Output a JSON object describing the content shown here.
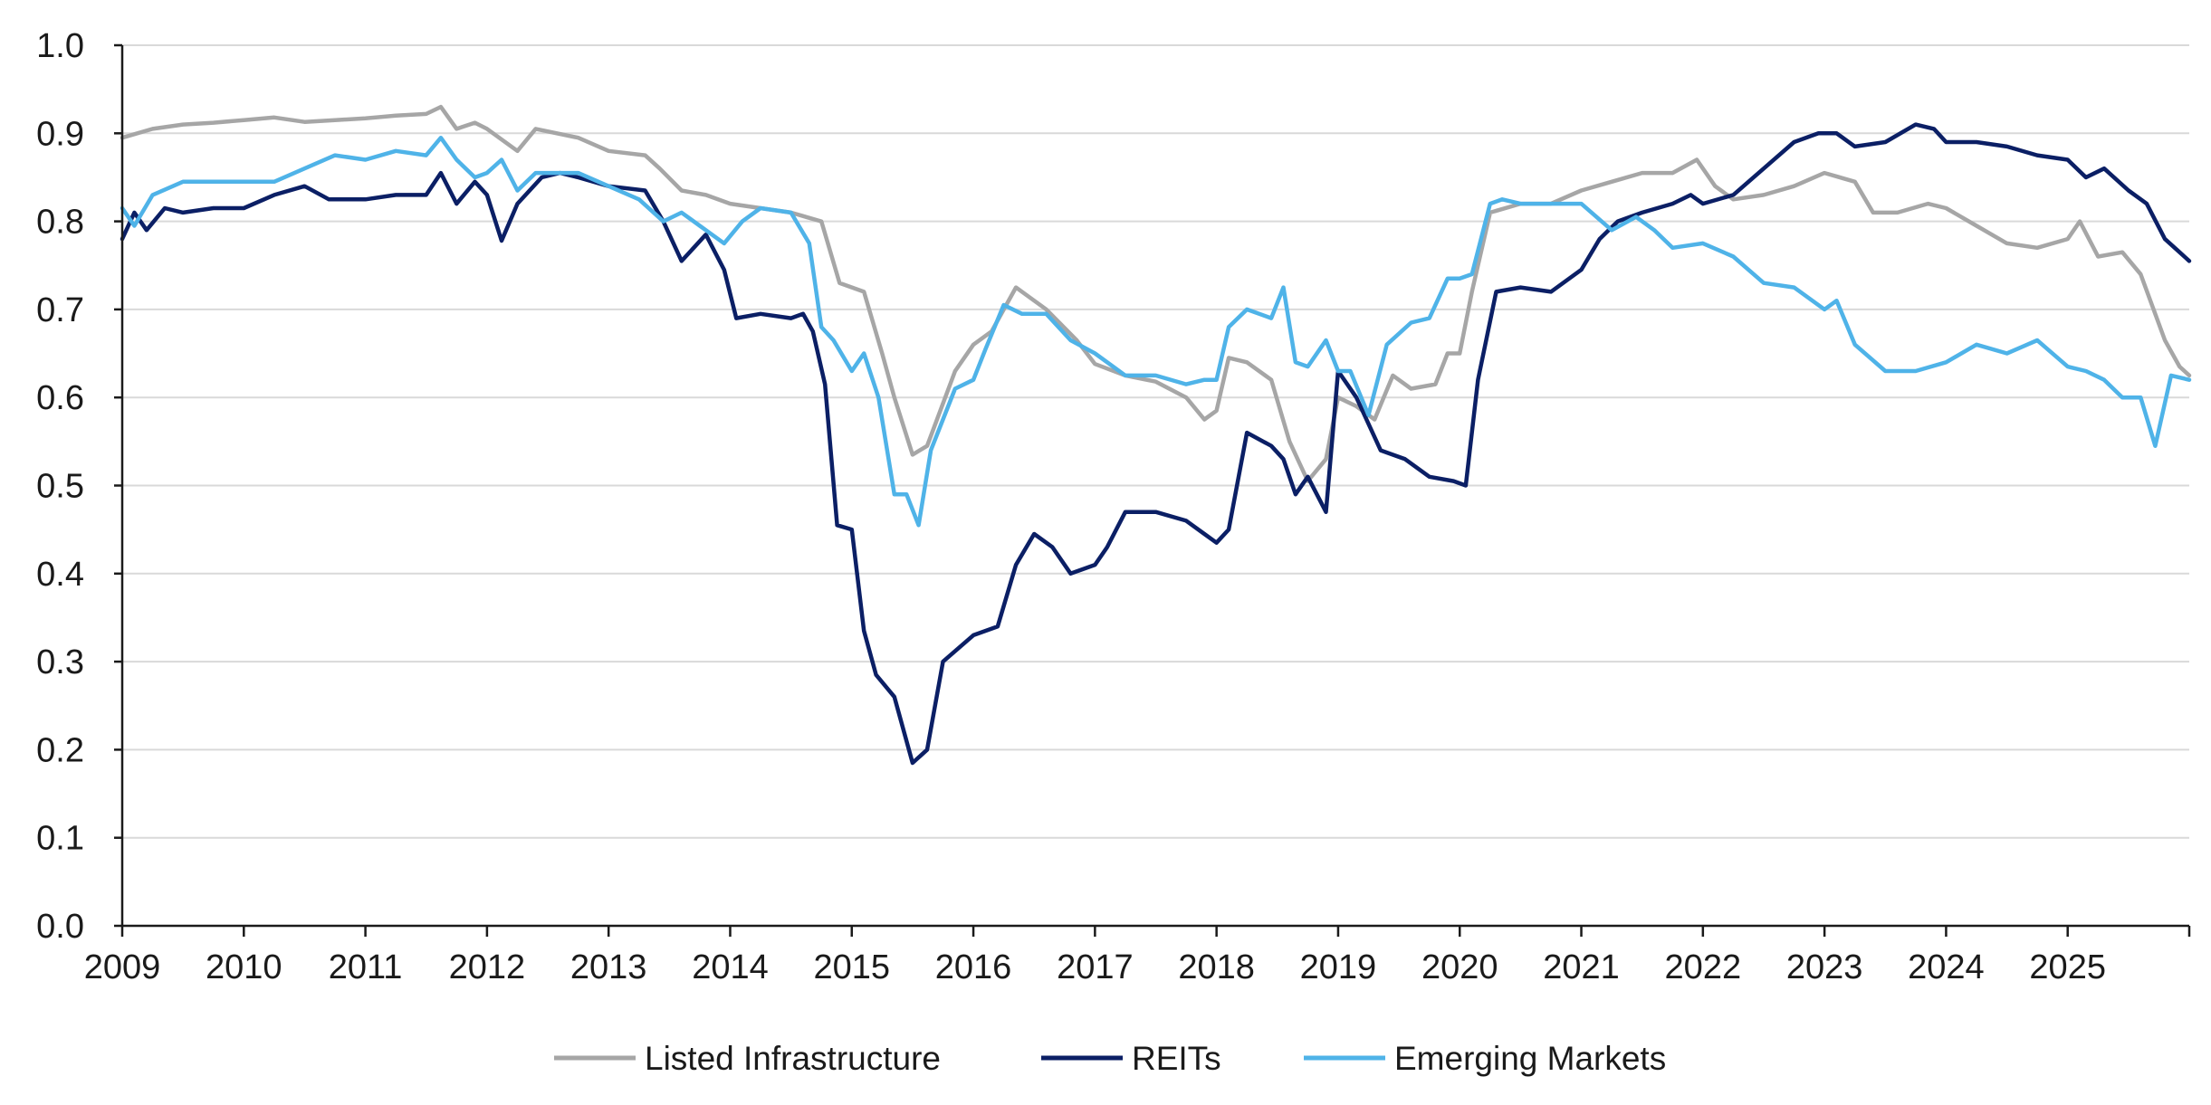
{
  "chart_data": {
    "type": "line",
    "title": "",
    "xlabel": "",
    "ylabel": "",
    "xlim": [
      2009.0,
      2026.0
    ],
    "ylim": [
      0.0,
      1.0
    ],
    "x_ticks": [
      2009,
      2010,
      2011,
      2012,
      2013,
      2014,
      2015,
      2016,
      2017,
      2018,
      2019,
      2020,
      2021,
      2022,
      2023,
      2024,
      2025
    ],
    "x_tick_labels": [
      "2009",
      "2010",
      "2011",
      "2012",
      "2013",
      "2014",
      "2015",
      "2016",
      "2017",
      "2018",
      "2019",
      "2020",
      "2021",
      "2022",
      "2023",
      "2024",
      "2025"
    ],
    "y_ticks": [
      0.0,
      0.1,
      0.2,
      0.3,
      0.4,
      0.5,
      0.6,
      0.7,
      0.8,
      0.9,
      1.0
    ],
    "y_tick_labels": [
      "0.0",
      "0.1",
      "0.2",
      "0.3",
      "0.4",
      "0.5",
      "0.6",
      "0.7",
      "0.8",
      "0.9",
      "1.0"
    ],
    "grid": "horizontal",
    "legend_position": "bottom-center",
    "series": [
      {
        "name": "Listed Infrastructure",
        "color": "#a6a6a6",
        "x": [
          2009.0,
          2009.25,
          2009.5,
          2009.75,
          2010.0,
          2010.25,
          2010.5,
          2010.75,
          2011.0,
          2011.25,
          2011.5,
          2011.62,
          2011.75,
          2011.9,
          2012.0,
          2012.25,
          2012.4,
          2012.75,
          2013.0,
          2013.3,
          2013.42,
          2013.6,
          2013.8,
          2014.0,
          2014.25,
          2014.5,
          2014.75,
          2014.9,
          2015.1,
          2015.25,
          2015.35,
          2015.5,
          2015.62,
          2015.85,
          2016.0,
          2016.15,
          2016.35,
          2016.6,
          2016.85,
          2017.0,
          2017.25,
          2017.5,
          2017.75,
          2017.9,
          2018.0,
          2018.1,
          2018.25,
          2018.45,
          2018.6,
          2018.75,
          2018.9,
          2019.0,
          2019.15,
          2019.3,
          2019.45,
          2019.6,
          2019.8,
          2019.9,
          2020.0,
          2020.1,
          2020.25,
          2020.5,
          2020.75,
          2021.0,
          2021.25,
          2021.5,
          2021.75,
          2021.95,
          2022.1,
          2022.25,
          2022.5,
          2022.75,
          2023.0,
          2023.25,
          2023.4,
          2023.6,
          2023.85,
          2024.0,
          2024.25,
          2024.5,
          2024.75,
          2025.0,
          2025.1,
          2025.25,
          2025.45,
          2025.6,
          2025.8,
          2025.92,
          2026.0
        ],
        "y": [
          0.895,
          0.905,
          0.91,
          0.912,
          0.915,
          0.918,
          0.913,
          0.915,
          0.917,
          0.92,
          0.922,
          0.93,
          0.905,
          0.912,
          0.905,
          0.88,
          0.905,
          0.895,
          0.88,
          0.875,
          0.86,
          0.835,
          0.83,
          0.82,
          0.815,
          0.81,
          0.8,
          0.73,
          0.72,
          0.65,
          0.6,
          0.535,
          0.545,
          0.63,
          0.66,
          0.675,
          0.725,
          0.7,
          0.665,
          0.638,
          0.625,
          0.618,
          0.6,
          0.575,
          0.585,
          0.645,
          0.64,
          0.62,
          0.55,
          0.505,
          0.53,
          0.6,
          0.59,
          0.575,
          0.625,
          0.61,
          0.615,
          0.65,
          0.65,
          0.72,
          0.81,
          0.82,
          0.82,
          0.835,
          0.845,
          0.855,
          0.855,
          0.87,
          0.84,
          0.825,
          0.83,
          0.84,
          0.855,
          0.845,
          0.81,
          0.81,
          0.82,
          0.815,
          0.795,
          0.775,
          0.77,
          0.78,
          0.8,
          0.76,
          0.765,
          0.74,
          0.665,
          0.635,
          0.625
        ]
      },
      {
        "name": "REITs",
        "color": "#0b1f65",
        "x": [
          2009.0,
          2009.1,
          2009.2,
          2009.35,
          2009.5,
          2009.75,
          2010.0,
          2010.25,
          2010.5,
          2010.7,
          2011.0,
          2011.25,
          2011.5,
          2011.62,
          2011.75,
          2011.9,
          2012.0,
          2012.12,
          2012.25,
          2012.45,
          2012.6,
          2012.75,
          2013.0,
          2013.3,
          2013.45,
          2013.6,
          2013.8,
          2013.95,
          2014.05,
          2014.25,
          2014.5,
          2014.6,
          2014.68,
          2014.78,
          2014.88,
          2015.0,
          2015.1,
          2015.2,
          2015.35,
          2015.5,
          2015.62,
          2015.75,
          2016.0,
          2016.2,
          2016.35,
          2016.5,
          2016.65,
          2016.8,
          2017.0,
          2017.1,
          2017.25,
          2017.5,
          2017.75,
          2017.9,
          2018.0,
          2018.1,
          2018.25,
          2018.45,
          2018.55,
          2018.65,
          2018.75,
          2018.9,
          2019.0,
          2019.15,
          2019.35,
          2019.55,
          2019.75,
          2019.95,
          2020.05,
          2020.15,
          2020.3,
          2020.5,
          2020.75,
          2021.0,
          2021.15,
          2021.3,
          2021.5,
          2021.75,
          2021.9,
          2022.0,
          2022.25,
          2022.5,
          2022.75,
          2022.95,
          2023.1,
          2023.25,
          2023.5,
          2023.75,
          2023.9,
          2024.0,
          2024.25,
          2024.5,
          2024.75,
          2025.0,
          2025.15,
          2025.3,
          2025.5,
          2025.65,
          2025.8,
          2025.92,
          2026.0
        ],
        "y": [
          0.78,
          0.81,
          0.79,
          0.815,
          0.81,
          0.815,
          0.815,
          0.83,
          0.84,
          0.825,
          0.825,
          0.83,
          0.83,
          0.855,
          0.82,
          0.845,
          0.83,
          0.778,
          0.82,
          0.85,
          0.855,
          0.85,
          0.84,
          0.835,
          0.8,
          0.755,
          0.785,
          0.745,
          0.69,
          0.695,
          0.69,
          0.695,
          0.675,
          0.615,
          0.455,
          0.45,
          0.335,
          0.285,
          0.26,
          0.185,
          0.2,
          0.3,
          0.33,
          0.34,
          0.41,
          0.445,
          0.43,
          0.4,
          0.41,
          0.43,
          0.47,
          0.47,
          0.46,
          0.445,
          0.435,
          0.45,
          0.56,
          0.545,
          0.53,
          0.49,
          0.51,
          0.47,
          0.63,
          0.6,
          0.54,
          0.53,
          0.51,
          0.505,
          0.5,
          0.62,
          0.72,
          0.725,
          0.72,
          0.745,
          0.78,
          0.8,
          0.81,
          0.82,
          0.83,
          0.82,
          0.83,
          0.86,
          0.89,
          0.9,
          0.9,
          0.885,
          0.89,
          0.91,
          0.905,
          0.89,
          0.89,
          0.885,
          0.875,
          0.87,
          0.85,
          0.86,
          0.835,
          0.82,
          0.78,
          0.765,
          0.755
        ]
      },
      {
        "name": "Emerging Markets",
        "color": "#4fb3e8",
        "x": [
          2009.0,
          2009.1,
          2009.25,
          2009.5,
          2009.75,
          2010.0,
          2010.25,
          2010.5,
          2010.75,
          2011.0,
          2011.25,
          2011.5,
          2011.62,
          2011.75,
          2011.9,
          2012.0,
          2012.12,
          2012.25,
          2012.4,
          2012.6,
          2012.75,
          2013.0,
          2013.25,
          2013.45,
          2013.6,
          2013.75,
          2013.95,
          2014.1,
          2014.25,
          2014.5,
          2014.65,
          2014.75,
          2014.85,
          2015.0,
          2015.1,
          2015.22,
          2015.35,
          2015.45,
          2015.55,
          2015.65,
          2015.85,
          2016.0,
          2016.1,
          2016.25,
          2016.4,
          2016.6,
          2016.8,
          2017.0,
          2017.25,
          2017.5,
          2017.75,
          2017.9,
          2018.0,
          2018.1,
          2018.25,
          2018.45,
          2018.55,
          2018.65,
          2018.75,
          2018.9,
          2019.0,
          2019.1,
          2019.25,
          2019.4,
          2019.6,
          2019.75,
          2019.9,
          2020.0,
          2020.1,
          2020.25,
          2020.35,
          2020.5,
          2020.75,
          2021.0,
          2021.25,
          2021.45,
          2021.6,
          2021.75,
          2022.0,
          2022.25,
          2022.5,
          2022.75,
          2023.0,
          2023.1,
          2023.25,
          2023.5,
          2023.75,
          2024.0,
          2024.25,
          2024.5,
          2024.75,
          2025.0,
          2025.15,
          2025.3,
          2025.45,
          2025.6,
          2025.72,
          2025.85,
          2026.0
        ],
        "y": [
          0.815,
          0.795,
          0.83,
          0.845,
          0.845,
          0.845,
          0.845,
          0.86,
          0.875,
          0.87,
          0.88,
          0.875,
          0.895,
          0.87,
          0.85,
          0.855,
          0.87,
          0.835,
          0.855,
          0.855,
          0.855,
          0.84,
          0.825,
          0.8,
          0.81,
          0.795,
          0.775,
          0.8,
          0.815,
          0.81,
          0.775,
          0.68,
          0.665,
          0.63,
          0.65,
          0.6,
          0.49,
          0.49,
          0.455,
          0.54,
          0.61,
          0.62,
          0.655,
          0.705,
          0.695,
          0.695,
          0.665,
          0.65,
          0.625,
          0.625,
          0.615,
          0.62,
          0.62,
          0.68,
          0.7,
          0.69,
          0.725,
          0.64,
          0.635,
          0.665,
          0.63,
          0.63,
          0.58,
          0.66,
          0.685,
          0.69,
          0.735,
          0.735,
          0.74,
          0.82,
          0.825,
          0.82,
          0.82,
          0.82,
          0.79,
          0.805,
          0.79,
          0.77,
          0.775,
          0.76,
          0.73,
          0.725,
          0.7,
          0.71,
          0.66,
          0.63,
          0.63,
          0.64,
          0.66,
          0.65,
          0.665,
          0.635,
          0.63,
          0.62,
          0.6,
          0.6,
          0.545,
          0.625,
          0.62
        ]
      }
    ]
  }
}
